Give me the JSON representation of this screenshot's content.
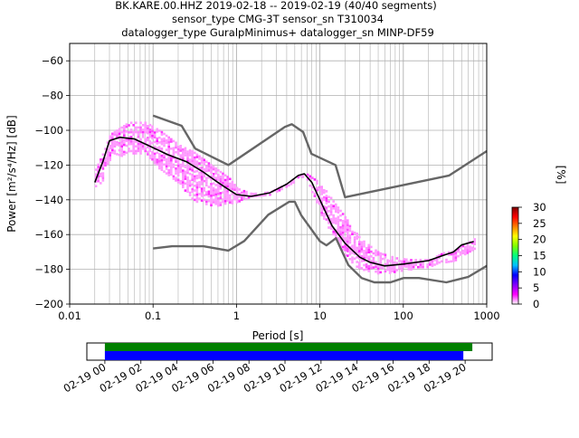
{
  "title_lines": [
    "BK.KARE.00.HHZ   2019-02-18 -- 2019-02-19  (40/40 segments)",
    "sensor_type CMG-3T sensor_sn T310034",
    "datalogger_type GuralpMinimus+ datalogger_sn MINP-DF59"
  ],
  "chart_data": [
    {
      "type": "heatmap",
      "subtype": "probabilistic-power-spectral-density",
      "xlabel": "Period [s]",
      "ylabel": "Power [m²/s⁴/Hz] [dB]",
      "x_scale": "log",
      "xlim": [
        0.01,
        1000
      ],
      "ylim": [
        -200,
        -50
      ],
      "x_ticks": [
        0.01,
        0.1,
        1,
        10,
        100,
        1000
      ],
      "x_tick_labels": [
        "0.01",
        "0.1",
        "1",
        "10",
        "100",
        "1000"
      ],
      "y_ticks": [
        -200,
        -180,
        -160,
        -140,
        -120,
        -100,
        -80,
        -60
      ],
      "y_tick_labels": [
        "−200",
        "−180",
        "−160",
        "−140",
        "−120",
        "−100",
        "−80",
        "−60"
      ],
      "grid": true,
      "colorbar": {
        "label": "[%]",
        "range": [
          0,
          30
        ],
        "ticks": [
          0,
          5,
          10,
          15,
          20,
          25,
          30
        ],
        "colormap": [
          "#ffffff",
          "#ff00ff",
          "#8000ff",
          "#0000ff",
          "#00c0ff",
          "#00ff80",
          "#80ff00",
          "#ffff00",
          "#ff8000",
          "#ff0000",
          "#800000"
        ]
      },
      "density_band": {
        "periods": [
          0.02,
          0.025,
          0.03,
          0.05,
          0.08,
          0.12,
          0.2,
          0.3,
          0.5,
          0.8,
          1.0,
          1.5,
          2.5,
          4.0,
          5.5,
          6.5,
          8.0,
          10,
          14,
          20,
          30,
          50,
          80,
          120,
          200,
          300,
          400,
          500,
          700
        ],
        "upper": [
          -122,
          -112,
          -102,
          -95,
          -95,
          -100,
          -108,
          -112,
          -120,
          -127,
          -133,
          -136,
          -135,
          -130,
          -126,
          -124,
          -127,
          -130,
          -140,
          -150,
          -162,
          -170,
          -173,
          -174,
          -174,
          -170,
          -169,
          -166,
          -162
        ],
        "lower": [
          -133,
          -128,
          -116,
          -113,
          -114,
          -122,
          -130,
          -140,
          -143,
          -142,
          -141,
          -138,
          -137,
          -132,
          -127,
          -126,
          -136,
          -148,
          -160,
          -172,
          -180,
          -182,
          -181,
          -180,
          -178,
          -176,
          -175,
          -172,
          -168
        ]
      },
      "series": [
        {
          "role": "mean",
          "color": "#000000",
          "x": [
            0.02,
            0.025,
            0.03,
            0.04,
            0.06,
            0.1,
            0.15,
            0.25,
            0.4,
            0.6,
            0.8,
            1.0,
            1.5,
            2.5,
            4.0,
            5.5,
            6.5,
            8.0,
            10,
            14,
            20,
            30,
            40,
            60,
            100,
            200,
            300,
            400,
            500,
            700
          ],
          "y": [
            -130,
            -118,
            -106,
            -104,
            -105,
            -110,
            -114,
            -118,
            -124,
            -130,
            -134,
            -137,
            -138,
            -136,
            -131,
            -126,
            -125,
            -130,
            -140,
            -155,
            -165,
            -173,
            -176,
            -178,
            -177,
            -175,
            -172,
            -170,
            -166,
            -164
          ]
        },
        {
          "role": "noise-model-high",
          "color": "#666666",
          "x": [
            0.1,
            0.22,
            0.32,
            0.8,
            3.8,
            4.6,
            6.3,
            7.9,
            15.4,
            20,
            354.8,
            1000
          ],
          "y": [
            -91.5,
            -97.4,
            -110.5,
            -120,
            -98,
            -96.5,
            -101,
            -113.5,
            -120,
            -138.5,
            -126,
            -112
          ]
        },
        {
          "role": "noise-model-low",
          "color": "#666666",
          "x": [
            0.1,
            0.17,
            0.4,
            0.8,
            1.24,
            2.4,
            4.3,
            5.0,
            6.0,
            10,
            12,
            15.6,
            21.9,
            31.6,
            45,
            70,
            101,
            154,
            328,
            600,
            1000
          ],
          "y": [
            -168,
            -166.7,
            -166.7,
            -169.2,
            -163.7,
            -148.6,
            -141.1,
            -141.1,
            -149,
            -163.8,
            -166.2,
            -162.1,
            -177.5,
            -185,
            -187.5,
            -187.5,
            -185,
            -185,
            -187.5,
            -184.4,
            -178
          ]
        }
      ]
    },
    {
      "type": "bar",
      "subtype": "data-availability",
      "x_tick_labels": [
        "02-19 00",
        "02-19 02",
        "02-19 04",
        "02-19 06",
        "02-19 08",
        "02-19 10",
        "02-19 12",
        "02-19 14",
        "02-19 16",
        "02-19 18",
        "02-19 20"
      ],
      "xlim_hours": [
        -1,
        21.5
      ],
      "series": [
        {
          "role": "segments-used",
          "color": "#008000",
          "start_hour": 0,
          "end_hour": 20.4
        },
        {
          "role": "data-present",
          "color": "#0000ff",
          "start_hour": 0,
          "end_hour": 19.9
        }
      ]
    }
  ]
}
